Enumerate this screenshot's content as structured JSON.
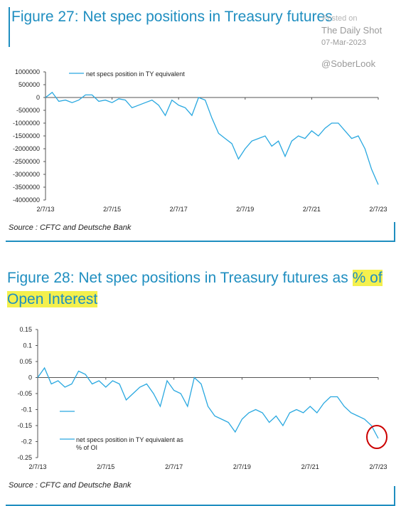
{
  "watermark": {
    "source_fragment": "Posted on",
    "publisher": "The Daily Shot",
    "date": "07-Mar-2023",
    "handle": "@SoberLook"
  },
  "colors": {
    "line": "#29a8e0",
    "title": "#1f8ec0",
    "highlight": "#f4f04d",
    "circle": "#cc0000"
  },
  "chart_data": [
    {
      "type": "line",
      "title": "Figure 27: Net spec positions in Treasury futures",
      "source": "Source : CFTC and Deutsche Bank",
      "xlabel": "",
      "ylabel": "",
      "x_ticks": [
        "2/7/13",
        "2/7/15",
        "2/7/17",
        "2/7/19",
        "2/7/21",
        "2/7/23"
      ],
      "y_ticks": [
        "1000000",
        "500000",
        "0",
        "-500000",
        "-1000000",
        "-1500000",
        "-2000000",
        "-2500000",
        "-3000000",
        "-3500000",
        "-4000000"
      ],
      "ylim": [
        -4000000,
        1000000
      ],
      "xlim": [
        2013.1,
        2023.1
      ],
      "legend_position": "top-left",
      "series": [
        {
          "name": "net specs position in TY equivalent",
          "x": [
            2013.1,
            2013.3,
            2013.5,
            2013.7,
            2013.9,
            2014.1,
            2014.3,
            2014.5,
            2014.7,
            2014.9,
            2015.1,
            2015.3,
            2015.5,
            2015.7,
            2015.9,
            2016.1,
            2016.3,
            2016.5,
            2016.7,
            2016.9,
            2017.1,
            2017.3,
            2017.5,
            2017.7,
            2017.9,
            2018.1,
            2018.3,
            2018.5,
            2018.7,
            2018.9,
            2019.1,
            2019.3,
            2019.5,
            2019.7,
            2019.9,
            2020.1,
            2020.3,
            2020.5,
            2020.7,
            2020.9,
            2021.1,
            2021.3,
            2021.5,
            2021.7,
            2021.9,
            2022.1,
            2022.3,
            2022.5,
            2022.7,
            2022.9,
            2023.1
          ],
          "values": [
            0,
            200000,
            -150000,
            -100000,
            -200000,
            -100000,
            100000,
            100000,
            -150000,
            -100000,
            -200000,
            -50000,
            -100000,
            -400000,
            -300000,
            -200000,
            -100000,
            -300000,
            -700000,
            -100000,
            -300000,
            -400000,
            -700000,
            0,
            -100000,
            -800000,
            -1400000,
            -1600000,
            -1800000,
            -2400000,
            -2000000,
            -1700000,
            -1600000,
            -1500000,
            -1900000,
            -1700000,
            -2300000,
            -1700000,
            -1500000,
            -1600000,
            -1300000,
            -1500000,
            -1200000,
            -1000000,
            -1000000,
            -1300000,
            -1600000,
            -1500000,
            -2000000,
            -2800000,
            -3400000
          ]
        }
      ]
    },
    {
      "type": "line",
      "title": "Figure 28: Net spec positions in Treasury futures as % of Open Interest",
      "title_plain": "Figure 28: Net spec positions in Treasury futures as ",
      "title_highlighted": "% of Open Interest",
      "source": "Source : CFTC and Deutsche Bank",
      "xlabel": "",
      "ylabel": "",
      "x_ticks": [
        "2/7/13",
        "2/7/15",
        "2/7/17",
        "2/7/19",
        "2/7/21",
        "2/7/23"
      ],
      "y_ticks": [
        "0.15",
        "0.1",
        "0.05",
        "0",
        "-0.05",
        "-0.1",
        "-0.15",
        "-0.2",
        "-0.25"
      ],
      "ylim": [
        -0.25,
        0.15
      ],
      "xlim": [
        2013.1,
        2023.1
      ],
      "legend_position": "bottom-left",
      "series": [
        {
          "name": "net specs position in TY equivalent as % of OI",
          "name_line1": "net specs position in TY equivalent as",
          "name_line2": "% of OI",
          "x": [
            2013.1,
            2013.3,
            2013.5,
            2013.7,
            2013.9,
            2014.1,
            2014.3,
            2014.5,
            2014.7,
            2014.9,
            2015.1,
            2015.3,
            2015.5,
            2015.7,
            2015.9,
            2016.1,
            2016.3,
            2016.5,
            2016.7,
            2016.9,
            2017.1,
            2017.3,
            2017.5,
            2017.7,
            2017.9,
            2018.1,
            2018.3,
            2018.5,
            2018.7,
            2018.9,
            2019.1,
            2019.3,
            2019.5,
            2019.7,
            2019.9,
            2020.1,
            2020.3,
            2020.5,
            2020.7,
            2020.9,
            2021.1,
            2021.3,
            2021.5,
            2021.7,
            2021.9,
            2022.1,
            2022.3,
            2022.5,
            2022.7,
            2022.9,
            2023.1
          ],
          "values": [
            0.0,
            0.03,
            -0.02,
            -0.01,
            -0.03,
            -0.02,
            0.02,
            0.01,
            -0.02,
            -0.01,
            -0.03,
            -0.01,
            -0.02,
            -0.07,
            -0.05,
            -0.03,
            -0.02,
            -0.05,
            -0.09,
            -0.01,
            -0.04,
            -0.05,
            -0.09,
            0.0,
            -0.02,
            -0.09,
            -0.12,
            -0.13,
            -0.14,
            -0.17,
            -0.13,
            -0.11,
            -0.1,
            -0.11,
            -0.14,
            -0.12,
            -0.15,
            -0.11,
            -0.1,
            -0.11,
            -0.09,
            -0.11,
            -0.08,
            -0.06,
            -0.06,
            -0.09,
            -0.11,
            -0.12,
            -0.13,
            -0.15,
            -0.19
          ]
        }
      ]
    }
  ]
}
